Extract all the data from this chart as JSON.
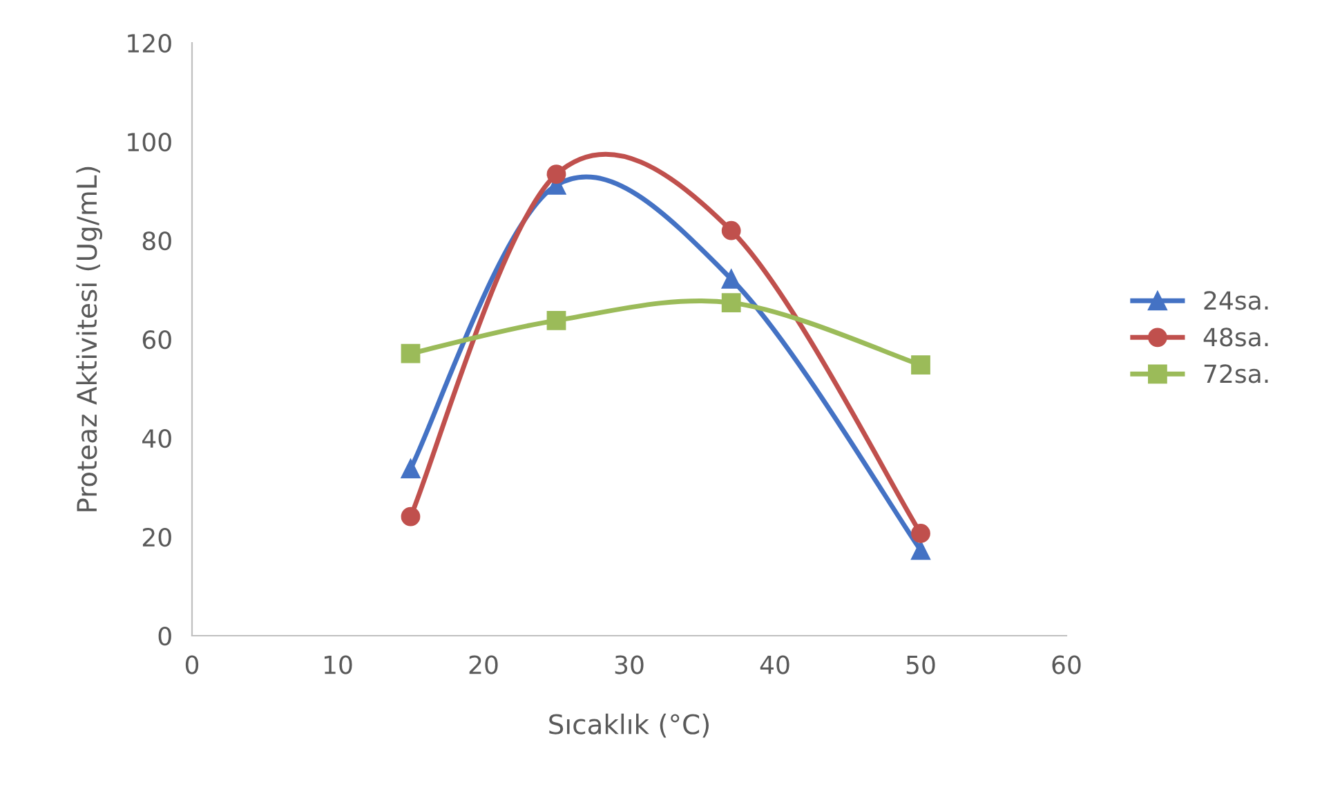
{
  "chart_data": {
    "type": "line",
    "xlabel": "Sıcaklık (°C)",
    "ylabel": "Proteaz Aktivitesi (Ug/mL)",
    "x": [
      15,
      25,
      37,
      50
    ],
    "series": [
      {
        "name": "24sa.",
        "color": "#4472c4",
        "marker": "triangle",
        "values": [
          33.8,
          91.2,
          72.2,
          17.3
        ]
      },
      {
        "name": "48sa.",
        "color": "#c0504d",
        "marker": "circle",
        "values": [
          24.1,
          93.4,
          82.0,
          20.7
        ]
      },
      {
        "name": "72sa.",
        "color": "#9bbb59",
        "marker": "square",
        "values": [
          57.1,
          63.8,
          67.4,
          54.8
        ]
      }
    ],
    "xlim": [
      0,
      60
    ],
    "xticks": [
      0,
      10,
      20,
      30,
      40,
      50,
      60
    ],
    "ylim": [
      0,
      120
    ],
    "yticks": [
      0,
      20,
      40,
      60,
      80,
      100,
      120
    ],
    "grid": false,
    "legend": "right",
    "line_style": "solid"
  }
}
